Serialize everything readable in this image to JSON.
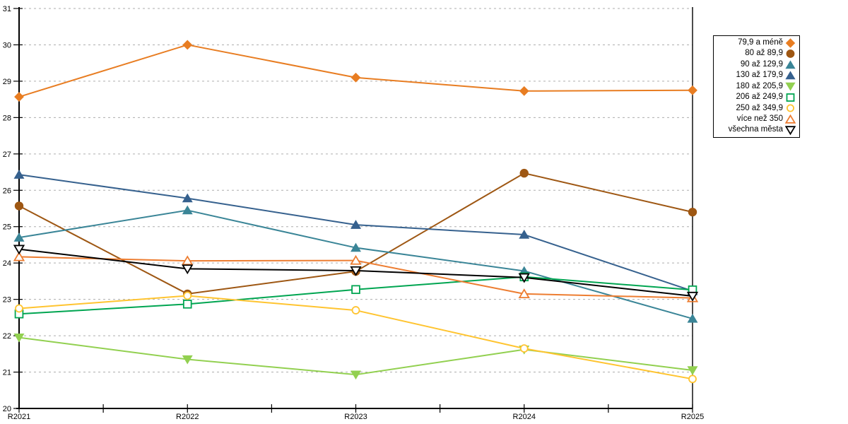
{
  "chart_data": {
    "type": "line",
    "title": "",
    "x": [
      "R2021",
      "R2022",
      "R2023",
      "R2024",
      "R2025"
    ],
    "axes": {
      "x_labels": [
        "R2021",
        "R2022",
        "R2023",
        "R2024",
        "R2025"
      ],
      "y_min": 20,
      "y_max": 31,
      "y_step": 1,
      "x_minor_ticks_between_labels": true
    },
    "grid": "horizontal-dashed",
    "legend_position": "right-outside",
    "series": [
      {
        "name": "79,9 a méně",
        "marker": "diamond",
        "marker_style": "filled",
        "color": "#E87D22",
        "values": [
          28.57,
          30.0,
          29.1,
          28.73,
          28.75
        ]
      },
      {
        "name": "80 až 89,9",
        "marker": "circle",
        "marker_style": "filled",
        "color": "#9E5713",
        "values": [
          25.57,
          23.15,
          23.77,
          26.47,
          25.4
        ]
      },
      {
        "name": "90 až 129,9",
        "marker": "triangle-up",
        "marker_style": "filled",
        "color": "#3A8597",
        "values": [
          24.7,
          25.45,
          24.42,
          23.78,
          22.47
        ]
      },
      {
        "name": "130 až 179,9",
        "marker": "triangle-up",
        "marker_style": "filled",
        "color": "#36618E",
        "values": [
          26.43,
          25.78,
          25.05,
          24.78,
          23.23
        ]
      },
      {
        "name": "180 až 205,9",
        "marker": "triangle-down",
        "marker_style": "filled",
        "color": "#92D050",
        "values": [
          21.95,
          21.35,
          20.93,
          21.62,
          21.05
        ]
      },
      {
        "name": "206 až 249,9",
        "marker": "square",
        "marker_style": "open",
        "color": "#00A551",
        "values": [
          22.6,
          22.87,
          23.27,
          23.62,
          23.26
        ]
      },
      {
        "name": "250 až 349,9",
        "marker": "circle",
        "marker_style": "open",
        "color": "#FFC430",
        "values": [
          22.75,
          23.1,
          22.7,
          21.65,
          20.81
        ]
      },
      {
        "name": "více než 350",
        "marker": "triangle-up",
        "marker_style": "open",
        "color": "#ED7D31",
        "values": [
          24.17,
          24.06,
          24.07,
          23.15,
          23.04
        ]
      },
      {
        "name": "všechna města",
        "marker": "triangle-down",
        "marker_style": "open",
        "color": "#000000",
        "values": [
          24.38,
          23.84,
          23.79,
          23.6,
          23.09
        ]
      }
    ],
    "style_colors": {
      "grid": "#ADADAD",
      "axis": "#000000",
      "background": "#FFFFFF",
      "label_text": "#000000"
    }
  }
}
